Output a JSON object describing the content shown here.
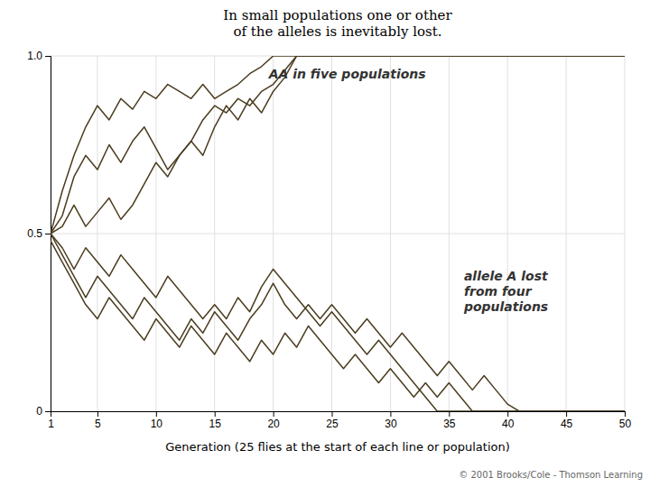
{
  "chart_data": {
    "type": "line",
    "title": "In small populations one or other\nof the alleles is inevitably lost.",
    "x_label": "Generation (25 flies at the start of each line or population)",
    "annotations": [
      "AA in five populations",
      "allele A lost\nfrom four\npopulations",
      "© 2001 Brooks/Cole - Thomson Learning"
    ],
    "color": "#4a3c1e",
    "grid": true,
    "xlim": [
      1,
      50
    ],
    "ylim": [
      0,
      1.0
    ],
    "xticks": [
      1,
      5,
      10,
      15,
      20,
      25,
      30,
      35,
      40,
      45,
      50
    ],
    "yticks": [
      0,
      0.5,
      {
        "value": 1.0,
        "label": "1.0"
      }
    ],
    "x": [
      1,
      2,
      3,
      4,
      5,
      6,
      7,
      8,
      9,
      10,
      11,
      12,
      13,
      14,
      15,
      16,
      17,
      18,
      19,
      20,
      21,
      22,
      23,
      24,
      25,
      26,
      27,
      28,
      29,
      30,
      31,
      32,
      33,
      34,
      35,
      36,
      37,
      38,
      39,
      40,
      41,
      42,
      43,
      44,
      45,
      46,
      47,
      48,
      49,
      50
    ],
    "series": [
      {
        "values": [
          0.5,
          0.62,
          0.72,
          0.8,
          0.86,
          0.82,
          0.88,
          0.85,
          0.9,
          0.88,
          0.92,
          0.9,
          0.88,
          0.92,
          0.88,
          0.9,
          0.92,
          0.95,
          0.97,
          1.0,
          1.0,
          1.0,
          1.0,
          1.0,
          1.0,
          1.0,
          1.0,
          1.0,
          1.0,
          1.0,
          1.0,
          1.0,
          1.0,
          1.0,
          1.0,
          1.0,
          1.0,
          1.0,
          1.0,
          1.0,
          1.0,
          1.0,
          1.0,
          1.0,
          1.0,
          1.0,
          1.0,
          1.0,
          1.0,
          1.0
        ]
      },
      {
        "values": [
          0.5,
          0.55,
          0.66,
          0.72,
          0.68,
          0.75,
          0.7,
          0.76,
          0.8,
          0.74,
          0.68,
          0.72,
          0.76,
          0.82,
          0.86,
          0.84,
          0.88,
          0.86,
          0.9,
          0.92,
          0.96,
          1.0,
          1.0,
          1.0,
          1.0,
          1.0,
          1.0,
          1.0,
          1.0,
          1.0,
          1.0,
          1.0,
          1.0,
          1.0,
          1.0,
          1.0,
          1.0,
          1.0,
          1.0,
          1.0,
          1.0,
          1.0,
          1.0,
          1.0,
          1.0,
          1.0,
          1.0,
          1.0,
          1.0,
          1.0
        ]
      },
      {
        "values": [
          0.5,
          0.52,
          0.58,
          0.52,
          0.56,
          0.6,
          0.54,
          0.58,
          0.64,
          0.7,
          0.66,
          0.72,
          0.76,
          0.72,
          0.8,
          0.86,
          0.82,
          0.88,
          0.84,
          0.9,
          0.94,
          1.0,
          1.0,
          1.0,
          1.0,
          1.0,
          1.0,
          1.0,
          1.0,
          1.0,
          1.0,
          1.0,
          1.0,
          1.0,
          1.0,
          1.0,
          1.0,
          1.0,
          1.0,
          1.0,
          1.0,
          1.0,
          1.0,
          1.0,
          1.0,
          1.0,
          1.0,
          1.0,
          1.0,
          1.0
        ]
      },
      {
        "values": [
          0.5,
          0.46,
          0.4,
          0.46,
          0.42,
          0.38,
          0.44,
          0.4,
          0.36,
          0.32,
          0.38,
          0.34,
          0.3,
          0.26,
          0.3,
          0.26,
          0.32,
          0.28,
          0.35,
          0.4,
          0.36,
          0.32,
          0.28,
          0.24,
          0.28,
          0.24,
          0.2,
          0.16,
          0.2,
          0.16,
          0.12,
          0.08,
          0.04,
          0.0,
          0.0,
          0.0,
          0.0,
          0.0,
          0.0,
          0.0,
          0.0,
          0.0,
          0.0,
          0.0,
          0.0,
          0.0,
          0.0,
          0.0,
          0.0,
          0.0
        ]
      },
      {
        "values": [
          0.5,
          0.44,
          0.38,
          0.32,
          0.38,
          0.34,
          0.3,
          0.26,
          0.32,
          0.28,
          0.24,
          0.2,
          0.26,
          0.22,
          0.28,
          0.24,
          0.2,
          0.26,
          0.3,
          0.36,
          0.3,
          0.26,
          0.3,
          0.26,
          0.3,
          0.26,
          0.22,
          0.26,
          0.22,
          0.18,
          0.22,
          0.18,
          0.14,
          0.1,
          0.14,
          0.1,
          0.06,
          0.1,
          0.06,
          0.02,
          0.0,
          0.0,
          0.0,
          0.0,
          0.0,
          0.0,
          0.0,
          0.0,
          0.0,
          0.0
        ]
      },
      {
        "values": [
          0.48,
          0.42,
          0.36,
          0.3,
          0.26,
          0.32,
          0.28,
          0.24,
          0.2,
          0.26,
          0.22,
          0.18,
          0.24,
          0.2,
          0.16,
          0.22,
          0.18,
          0.14,
          0.2,
          0.16,
          0.22,
          0.18,
          0.24,
          0.2,
          0.16,
          0.12,
          0.16,
          0.12,
          0.08,
          0.12,
          0.08,
          0.04,
          0.08,
          0.04,
          0.08,
          0.04,
          0.0,
          0.0,
          0.0,
          0.0,
          0.0,
          0.0,
          0.0,
          0.0,
          0.0,
          0.0,
          0.0,
          0.0,
          0.0,
          0.0
        ]
      }
    ]
  }
}
